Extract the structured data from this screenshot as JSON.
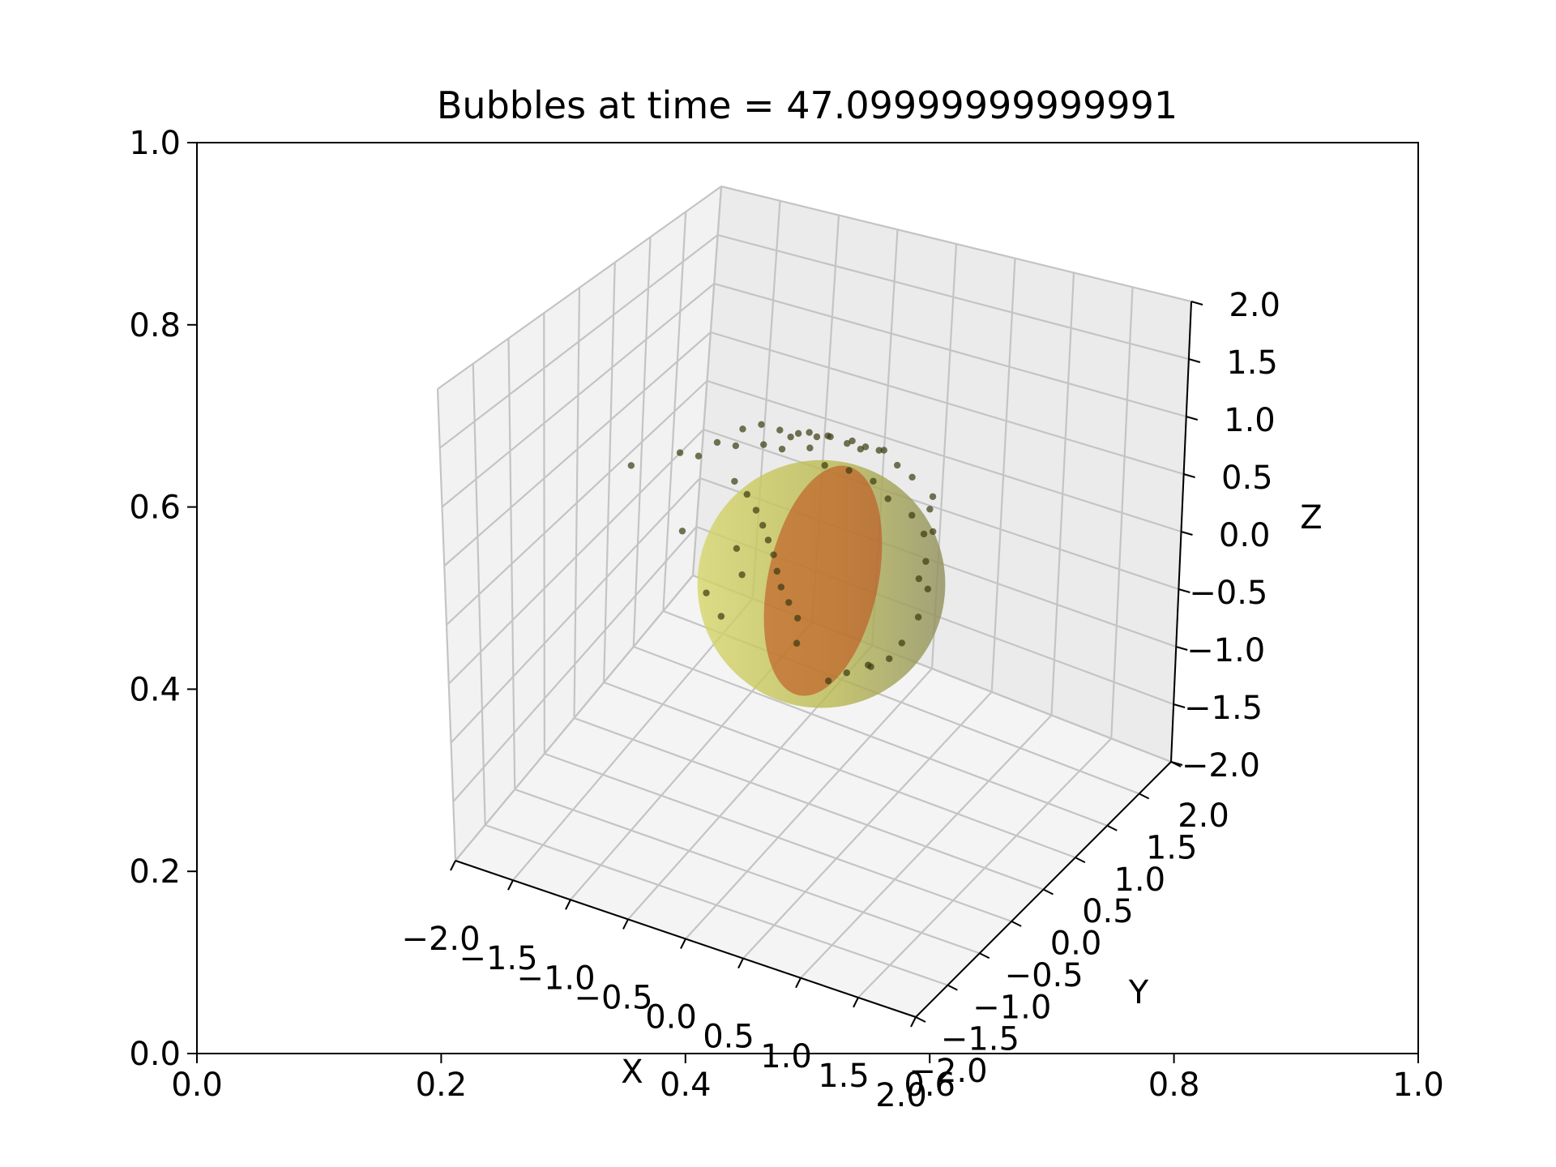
{
  "chart_data": {
    "type": "scatter",
    "title": "Bubbles at time = 47.09999999999991",
    "outer_axes": {
      "x_ticks": [
        "0.0",
        "0.2",
        "0.4",
        "0.6",
        "0.8",
        "1.0"
      ],
      "y_ticks": [
        "0.0",
        "0.2",
        "0.4",
        "0.6",
        "0.8",
        "1.0"
      ],
      "xlim": [
        0,
        1
      ],
      "ylim": [
        0,
        1
      ]
    },
    "axes3d": {
      "xlabel": "X",
      "ylabel": "Y",
      "zlabel": "Z",
      "xlim": [
        -2,
        2
      ],
      "ylim": [
        -2,
        2
      ],
      "zlim": [
        -2,
        2
      ],
      "x_ticks": [
        "−2.0",
        "−1.5",
        "−1.0",
        "−0.5",
        "0.0",
        "0.5",
        "1.0",
        "1.5",
        "2.0"
      ],
      "y_ticks": [
        "−2.0",
        "−1.5",
        "−1.0",
        "−0.5",
        "0.0",
        "0.5",
        "1.0",
        "1.5",
        "2.0"
      ],
      "z_ticks": [
        "−2.0",
        "−1.5",
        "−1.0",
        "−0.5",
        "0.0",
        "0.5",
        "1.0",
        "1.5",
        "2.0"
      ],
      "grid": true
    },
    "sphere": {
      "center": [
        0,
        0,
        0
      ],
      "radius": 1.0,
      "color": "#c8c840",
      "alpha": 0.55
    },
    "disc": {
      "color": "#c0501a",
      "alpha": 0.6
    },
    "points_color": "#3a3a10",
    "points": [
      [
        -0.9,
        -0.4,
        1.0
      ],
      [
        -0.7,
        -0.2,
        1.05
      ],
      [
        -0.6,
        0.0,
        1.1
      ],
      [
        -0.5,
        0.1,
        1.12
      ],
      [
        -0.4,
        0.2,
        1.05
      ],
      [
        -0.3,
        0.3,
        1.0
      ],
      [
        -0.2,
        0.4,
        0.95
      ],
      [
        0.0,
        0.5,
        0.9
      ],
      [
        0.1,
        0.6,
        0.85
      ],
      [
        0.2,
        0.7,
        0.8
      ],
      [
        -0.8,
        -0.3,
        0.95
      ],
      [
        -0.6,
        -0.1,
        1.0
      ],
      [
        -0.45,
        0.05,
        0.98
      ],
      [
        -0.35,
        0.15,
        0.92
      ],
      [
        -0.2,
        0.3,
        0.9
      ],
      [
        -0.1,
        0.35,
        0.75
      ],
      [
        0.05,
        0.45,
        0.7
      ],
      [
        0.2,
        0.55,
        0.6
      ],
      [
        0.3,
        0.6,
        0.45
      ],
      [
        0.45,
        0.7,
        0.3
      ],
      [
        -0.55,
        -0.2,
        0.75
      ],
      [
        -0.5,
        -0.1,
        0.6
      ],
      [
        -0.45,
        -0.05,
        0.45
      ],
      [
        -0.42,
        0.0,
        0.3
      ],
      [
        -0.4,
        0.05,
        0.15
      ],
      [
        -0.38,
        0.1,
        0.0
      ],
      [
        -0.36,
        0.12,
        -0.15
      ],
      [
        -0.34,
        0.15,
        -0.3
      ],
      [
        -0.3,
        0.2,
        -0.45
      ],
      [
        -0.25,
        0.25,
        -0.6
      ],
      [
        0.5,
        0.8,
        0.1
      ],
      [
        0.55,
        0.75,
        -0.1
      ],
      [
        0.6,
        0.7,
        -0.3
      ],
      [
        0.58,
        0.6,
        -0.5
      ],
      [
        0.5,
        0.5,
        -0.7
      ],
      [
        0.45,
        0.4,
        -0.8
      ],
      [
        0.35,
        0.3,
        -0.85
      ],
      [
        0.2,
        0.2,
        -0.9
      ],
      [
        0.1,
        0.1,
        -0.95
      ],
      [
        0.65,
        0.65,
        0.55
      ],
      [
        -1.2,
        -0.6,
        0.9
      ],
      [
        -0.85,
        -0.45,
        0.35
      ],
      [
        -0.7,
        -0.35,
        -0.2
      ],
      [
        -0.6,
        -0.3,
        -0.4
      ],
      [
        0.3,
        0.45,
        0.95
      ],
      [
        0.4,
        0.55,
        0.8
      ],
      [
        0.5,
        0.6,
        0.7
      ],
      [
        0.6,
        0.7,
        0.4
      ],
      [
        0.2,
        0.35,
        0.98
      ],
      [
        -0.15,
        0.2,
        1.1
      ],
      [
        -0.05,
        0.3,
        1.05
      ],
      [
        0.1,
        0.4,
        1.0
      ],
      [
        0.0,
        0.25,
        1.08
      ],
      [
        -0.25,
        0.1,
        1.08
      ],
      [
        -0.5,
        -0.25,
        0.2
      ],
      [
        -0.48,
        -0.2,
        -0.05
      ],
      [
        0.55,
        0.65,
        -0.2
      ],
      [
        0.62,
        0.72,
        0.2
      ],
      [
        0.3,
        0.35,
        -0.88
      ],
      [
        -0.2,
        0.15,
        -0.75
      ]
    ]
  }
}
